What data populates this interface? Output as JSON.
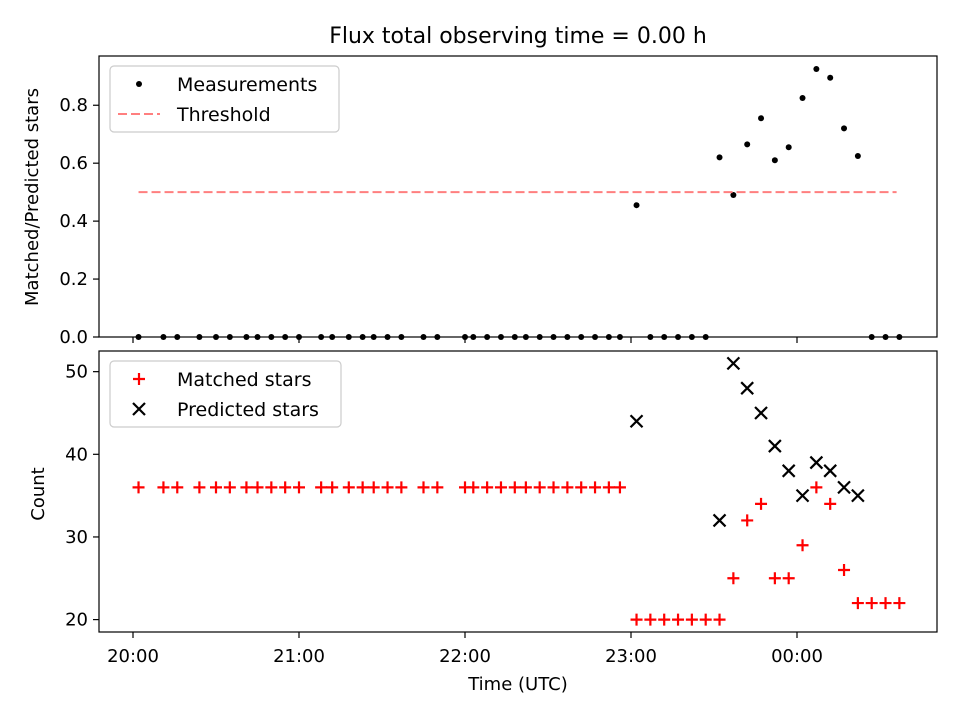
{
  "chart_data": [
    {
      "type": "scatter",
      "title": "Flux total observing time = 0.00 h",
      "xlabel": "",
      "ylabel": "Matched/Predicted stars",
      "ylim": [
        0,
        0.97
      ],
      "yticks": [
        "0.0",
        "0.2",
        "0.4",
        "0.6",
        "0.8"
      ],
      "xticks": [
        "20:00",
        "21:00",
        "22:00",
        "23:00",
        "00:00"
      ],
      "legend": {
        "placement": "top-left",
        "entries": [
          "Measurements",
          "Threshold"
        ]
      },
      "series": [
        {
          "name": "Measurements",
          "marker": "dot",
          "color": "#000000",
          "points": [
            [
              "20:02",
              0
            ],
            [
              "20:11",
              0
            ],
            [
              "20:16",
              0
            ],
            [
              "20:24",
              0
            ],
            [
              "20:30",
              0
            ],
            [
              "20:35",
              0
            ],
            [
              "20:41",
              0
            ],
            [
              "20:45",
              0
            ],
            [
              "20:50",
              0
            ],
            [
              "20:55",
              0
            ],
            [
              "21:00",
              0
            ],
            [
              "21:08",
              0
            ],
            [
              "21:12",
              0
            ],
            [
              "21:18",
              0
            ],
            [
              "21:23",
              0
            ],
            [
              "21:27",
              0
            ],
            [
              "21:32",
              0
            ],
            [
              "21:37",
              0
            ],
            [
              "21:45",
              0
            ],
            [
              "21:50",
              0
            ],
            [
              "22:00",
              0
            ],
            [
              "22:03",
              0
            ],
            [
              "22:08",
              0
            ],
            [
              "22:13",
              0
            ],
            [
              "22:18",
              0
            ],
            [
              "22:22",
              0
            ],
            [
              "22:27",
              0
            ],
            [
              "22:32",
              0
            ],
            [
              "22:37",
              0
            ],
            [
              "22:42",
              0
            ],
            [
              "22:47",
              0
            ],
            [
              "22:52",
              0
            ],
            [
              "22:56",
              0
            ],
            [
              "23:02",
              0.455
            ],
            [
              "23:07",
              0
            ],
            [
              "23:12",
              0
            ],
            [
              "23:17",
              0
            ],
            [
              "23:22",
              0
            ],
            [
              "23:27",
              0
            ],
            [
              "23:32",
              0.62
            ],
            [
              "23:37",
              0.49
            ],
            [
              "23:42",
              0.665
            ],
            [
              "23:47",
              0.755
            ],
            [
              "23:52",
              0.61
            ],
            [
              "23:57",
              0.655
            ],
            [
              "00:02",
              0.825
            ],
            [
              "00:07",
              0.925
            ],
            [
              "00:12",
              0.895
            ],
            [
              "00:17",
              0.72
            ],
            [
              "00:22",
              0.625
            ],
            [
              "00:27",
              0
            ],
            [
              "00:32",
              0
            ],
            [
              "00:37",
              0
            ]
          ]
        },
        {
          "name": "Threshold",
          "style": "dashed",
          "color": "#ff7f7f",
          "points": [
            [
              "20:02",
              0.5
            ],
            [
              "00:36",
              0.5
            ]
          ]
        }
      ]
    },
    {
      "type": "scatter",
      "title": "",
      "xlabel": "Time (UTC)",
      "ylabel": "Count",
      "ylim": [
        18.5,
        52.5
      ],
      "yticks": [
        "20",
        "30",
        "40",
        "50"
      ],
      "xticks": [
        "20:00",
        "21:00",
        "22:00",
        "23:00",
        "00:00"
      ],
      "legend": {
        "placement": "top-left",
        "entries": [
          "Matched stars",
          "Predicted stars"
        ]
      },
      "series": [
        {
          "name": "Matched stars",
          "marker": "plus",
          "color": "#ff0000",
          "points": [
            [
              "20:02",
              36
            ],
            [
              "20:11",
              36
            ],
            [
              "20:16",
              36
            ],
            [
              "20:24",
              36
            ],
            [
              "20:30",
              36
            ],
            [
              "20:35",
              36
            ],
            [
              "20:41",
              36
            ],
            [
              "20:45",
              36
            ],
            [
              "20:50",
              36
            ],
            [
              "20:55",
              36
            ],
            [
              "21:00",
              36
            ],
            [
              "21:08",
              36
            ],
            [
              "21:12",
              36
            ],
            [
              "21:18",
              36
            ],
            [
              "21:23",
              36
            ],
            [
              "21:27",
              36
            ],
            [
              "21:32",
              36
            ],
            [
              "21:37",
              36
            ],
            [
              "21:45",
              36
            ],
            [
              "21:50",
              36
            ],
            [
              "22:00",
              36
            ],
            [
              "22:03",
              36
            ],
            [
              "22:08",
              36
            ],
            [
              "22:13",
              36
            ],
            [
              "22:18",
              36
            ],
            [
              "22:22",
              36
            ],
            [
              "22:27",
              36
            ],
            [
              "22:32",
              36
            ],
            [
              "22:37",
              36
            ],
            [
              "22:42",
              36
            ],
            [
              "22:47",
              36
            ],
            [
              "22:52",
              36
            ],
            [
              "22:56",
              36
            ],
            [
              "23:02",
              20
            ],
            [
              "23:07",
              20
            ],
            [
              "23:12",
              20
            ],
            [
              "23:17",
              20
            ],
            [
              "23:22",
              20
            ],
            [
              "23:27",
              20
            ],
            [
              "23:32",
              20
            ],
            [
              "23:37",
              25
            ],
            [
              "23:42",
              32
            ],
            [
              "23:47",
              34
            ],
            [
              "23:52",
              25
            ],
            [
              "23:57",
              25
            ],
            [
              "00:02",
              29
            ],
            [
              "00:07",
              36
            ],
            [
              "00:12",
              34
            ],
            [
              "00:17",
              26
            ],
            [
              "00:22",
              22
            ],
            [
              "00:27",
              22
            ],
            [
              "00:32",
              22
            ],
            [
              "00:37",
              22
            ]
          ]
        },
        {
          "name": "Predicted stars",
          "marker": "x",
          "color": "#000000",
          "points": [
            [
              "23:02",
              44
            ],
            [
              "23:32",
              32
            ],
            [
              "23:37",
              51
            ],
            [
              "23:42",
              48
            ],
            [
              "23:47",
              45
            ],
            [
              "23:52",
              41
            ],
            [
              "23:57",
              38
            ],
            [
              "00:02",
              35
            ],
            [
              "00:07",
              39
            ],
            [
              "00:12",
              38
            ],
            [
              "00:17",
              36
            ],
            [
              "00:22",
              35
            ]
          ]
        }
      ]
    }
  ]
}
